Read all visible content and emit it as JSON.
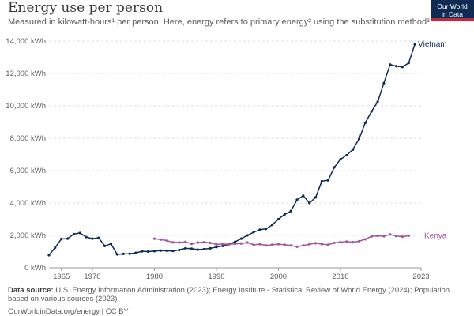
{
  "header": {
    "title": "Energy use per person",
    "subtitle": "Measured in kilowatt-hours¹ per person. Here, energy refers to primary energy² using the substitution method³.",
    "logo_line1": "Our World",
    "logo_line2": "in Data"
  },
  "footer": {
    "source_label": "Data source:",
    "source_text": " U.S. Energy Information Administration (2023); Energy Institute - Statistical Review of World Energy (2024); Population based on various sources (2023)",
    "url": "OurWorldinData.org/energy | CC BY"
  },
  "chart_data": {
    "type": "line",
    "title": "Energy use per person",
    "xlim": [
      1963,
      2023
    ],
    "ylim": [
      0,
      14000
    ],
    "x_ticks": [
      {
        "value": 1965,
        "label": "1965"
      },
      {
        "value": 1970,
        "label": "1970"
      },
      {
        "value": 1980,
        "label": "1980"
      },
      {
        "value": 1990,
        "label": "1990"
      },
      {
        "value": 2000,
        "label": "2000"
      },
      {
        "value": 2010,
        "label": "2010"
      },
      {
        "value": 2023,
        "label": "2023"
      }
    ],
    "y_ticks": [
      {
        "value": 0,
        "label": "0 kWh"
      },
      {
        "value": 2000,
        "label": "2,000 kWh"
      },
      {
        "value": 4000,
        "label": "4,000 kWh"
      },
      {
        "value": 6000,
        "label": "6,000 kWh"
      },
      {
        "value": 8000,
        "label": "8,000 kWh"
      },
      {
        "value": 10000,
        "label": "10,000 kWh"
      },
      {
        "value": 12000,
        "label": "12,000 kWh"
      },
      {
        "value": 14000,
        "label": "14,000 kWh"
      }
    ],
    "grid": true,
    "series": [
      {
        "name": "Vietnam",
        "color": "#0f2b54",
        "points": [
          [
            1963,
            780
          ],
          [
            1964,
            1250
          ],
          [
            1965,
            1780
          ],
          [
            1966,
            1800
          ],
          [
            1967,
            2080
          ],
          [
            1968,
            2150
          ],
          [
            1969,
            1900
          ],
          [
            1970,
            1800
          ],
          [
            1971,
            1850
          ],
          [
            1972,
            1350
          ],
          [
            1973,
            1480
          ],
          [
            1974,
            830
          ],
          [
            1975,
            860
          ],
          [
            1976,
            870
          ],
          [
            1977,
            920
          ],
          [
            1978,
            1020
          ],
          [
            1979,
            1000
          ],
          [
            1980,
            1030
          ],
          [
            1981,
            1060
          ],
          [
            1982,
            1050
          ],
          [
            1983,
            1040
          ],
          [
            1984,
            1100
          ],
          [
            1985,
            1200
          ],
          [
            1986,
            1180
          ],
          [
            1987,
            1120
          ],
          [
            1988,
            1150
          ],
          [
            1989,
            1200
          ],
          [
            1990,
            1280
          ],
          [
            1991,
            1350
          ],
          [
            1992,
            1450
          ],
          [
            1993,
            1600
          ],
          [
            1994,
            1800
          ],
          [
            1995,
            2000
          ],
          [
            1996,
            2200
          ],
          [
            1997,
            2350
          ],
          [
            1998,
            2400
          ],
          [
            1999,
            2650
          ],
          [
            2000,
            3000
          ],
          [
            2001,
            3300
          ],
          [
            2002,
            3500
          ],
          [
            2003,
            4200
          ],
          [
            2004,
            4450
          ],
          [
            2005,
            4000
          ],
          [
            2006,
            4350
          ],
          [
            2007,
            5350
          ],
          [
            2008,
            5400
          ],
          [
            2009,
            6200
          ],
          [
            2010,
            6700
          ],
          [
            2011,
            6950
          ],
          [
            2012,
            7300
          ],
          [
            2013,
            7950
          ],
          [
            2014,
            8950
          ],
          [
            2015,
            9650
          ],
          [
            2016,
            10250
          ],
          [
            2017,
            11400
          ],
          [
            2018,
            12550
          ],
          [
            2019,
            12450
          ],
          [
            2020,
            12400
          ],
          [
            2021,
            12650
          ],
          [
            2022,
            13800
          ]
        ]
      },
      {
        "name": "Kenya",
        "color": "#a2559c",
        "points": [
          [
            1980,
            1800
          ],
          [
            1981,
            1740
          ],
          [
            1982,
            1680
          ],
          [
            1983,
            1570
          ],
          [
            1984,
            1560
          ],
          [
            1985,
            1600
          ],
          [
            1986,
            1480
          ],
          [
            1987,
            1560
          ],
          [
            1988,
            1580
          ],
          [
            1989,
            1540
          ],
          [
            1990,
            1440
          ],
          [
            1991,
            1470
          ],
          [
            1992,
            1450
          ],
          [
            1993,
            1480
          ],
          [
            1994,
            1500
          ],
          [
            1995,
            1560
          ],
          [
            1996,
            1420
          ],
          [
            1997,
            1460
          ],
          [
            1998,
            1380
          ],
          [
            1999,
            1420
          ],
          [
            2000,
            1460
          ],
          [
            2001,
            1420
          ],
          [
            2002,
            1380
          ],
          [
            2003,
            1300
          ],
          [
            2004,
            1380
          ],
          [
            2005,
            1450
          ],
          [
            2006,
            1520
          ],
          [
            2007,
            1460
          ],
          [
            2008,
            1420
          ],
          [
            2009,
            1540
          ],
          [
            2010,
            1580
          ],
          [
            2011,
            1620
          ],
          [
            2012,
            1580
          ],
          [
            2013,
            1640
          ],
          [
            2014,
            1760
          ],
          [
            2015,
            1940
          ],
          [
            2016,
            1970
          ],
          [
            2017,
            1950
          ],
          [
            2018,
            2060
          ],
          [
            2019,
            1960
          ],
          [
            2020,
            1920
          ],
          [
            2021,
            1980
          ]
        ]
      }
    ]
  }
}
